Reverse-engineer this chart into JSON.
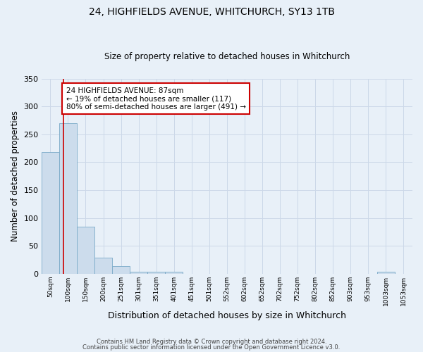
{
  "title": "24, HIGHFIELDS AVENUE, WHITCHURCH, SY13 1TB",
  "subtitle": "Size of property relative to detached houses in Whitchurch",
  "bar_values": [
    218,
    270,
    84,
    29,
    13,
    4,
    4,
    3,
    0,
    0,
    0,
    0,
    0,
    0,
    0,
    0,
    0,
    0,
    0,
    3,
    0
  ],
  "x_labels": [
    "50sqm",
    "100sqm",
    "150sqm",
    "200sqm",
    "251sqm",
    "301sqm",
    "351sqm",
    "401sqm",
    "451sqm",
    "501sqm",
    "552sqm",
    "602sqm",
    "652sqm",
    "702sqm",
    "752sqm",
    "802sqm",
    "852sqm",
    "903sqm",
    "953sqm",
    "1003sqm",
    "1053sqm"
  ],
  "bar_color": "#ccdcec",
  "bar_edge_color": "#7aaac8",
  "ylabel": "Number of detached properties",
  "xlabel": "Distribution of detached houses by size in Whitchurch",
  "ylim": [
    0,
    350
  ],
  "yticks": [
    0,
    50,
    100,
    150,
    200,
    250,
    300,
    350
  ],
  "property_line_color": "#cc0000",
  "annotation_text": "24 HIGHFIELDS AVENUE: 87sqm\n← 19% of detached houses are smaller (117)\n80% of semi-detached houses are larger (491) →",
  "annotation_box_color": "#ffffff",
  "annotation_box_edge": "#cc0000",
  "footer_line1": "Contains HM Land Registry data © Crown copyright and database right 2024.",
  "footer_line2": "Contains public sector information licensed under the Open Government Licence v3.0.",
  "grid_color": "#ccd8e8",
  "bg_color": "#e8f0f8"
}
